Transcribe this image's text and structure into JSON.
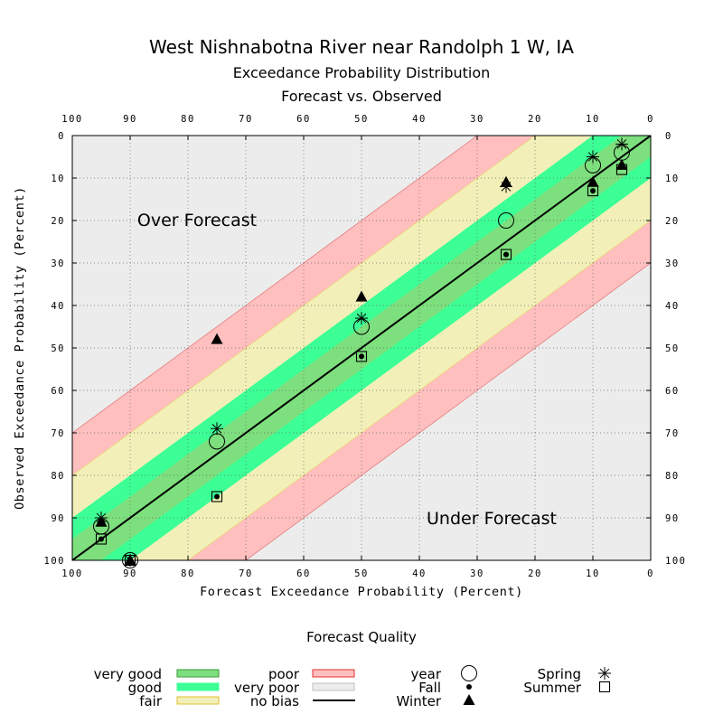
{
  "title": "West Nishnabotna River near Randolph 1 W, IA",
  "subtitle1": "Exceedance Probability Distribution",
  "subtitle2": "Forecast vs. Observed",
  "chart_data": {
    "type": "scatter",
    "xlabel": "Forecast Exceedance Probability (Percent)",
    "ylabel": "Observed Exceedance Probability (Percent)",
    "xlim": [
      100,
      0
    ],
    "ylim": [
      100,
      0
    ],
    "ticks": [
      "0",
      "10",
      "20",
      "30",
      "40",
      "50",
      "60",
      "70",
      "80",
      "90",
      "100"
    ],
    "grid": true,
    "annotations": {
      "over": "Over Forecast",
      "under": "Under Forecast"
    },
    "bands": [
      {
        "name": "very good",
        "offset": 5,
        "color": "#7ddf7d"
      },
      {
        "name": "good",
        "offset": 10,
        "color": "#3cff96"
      },
      {
        "name": "fair",
        "offset": 20,
        "color": "#f2f0b8"
      },
      {
        "name": "poor",
        "offset": 30,
        "color": "#ffbfbf"
      },
      {
        "name": "very poor",
        "offset": 100,
        "color": "#ececec"
      }
    ],
    "series": [
      {
        "name": "year",
        "marker": "circle",
        "points": [
          [
            95,
            92
          ],
          [
            90,
            100
          ],
          [
            75,
            72
          ],
          [
            50,
            45
          ],
          [
            25,
            20
          ],
          [
            10,
            7
          ],
          [
            5,
            4
          ]
        ]
      },
      {
        "name": "Fall",
        "marker": "dot",
        "points": [
          [
            95,
            95
          ],
          [
            90,
            100
          ],
          [
            75,
            85
          ],
          [
            50,
            52
          ],
          [
            25,
            28
          ],
          [
            10,
            13
          ],
          [
            5,
            7
          ]
        ]
      },
      {
        "name": "Winter",
        "marker": "triangle",
        "points": [
          [
            95,
            91
          ],
          [
            90,
            100
          ],
          [
            75,
            48
          ],
          [
            50,
            38
          ],
          [
            25,
            11
          ],
          [
            10,
            11
          ],
          [
            5,
            7
          ]
        ]
      },
      {
        "name": "Spring",
        "marker": "star",
        "points": [
          [
            95,
            90
          ],
          [
            90,
            100
          ],
          [
            75,
            69
          ],
          [
            50,
            43
          ],
          [
            25,
            12
          ],
          [
            10,
            5
          ],
          [
            5,
            2
          ]
        ]
      },
      {
        "name": "Summer",
        "marker": "square",
        "points": [
          [
            95,
            95
          ],
          [
            90,
            100
          ],
          [
            75,
            85
          ],
          [
            50,
            52
          ],
          [
            25,
            28
          ],
          [
            10,
            13
          ],
          [
            5,
            8
          ]
        ]
      }
    ]
  },
  "legend": {
    "title": "Forecast Quality",
    "quality": [
      {
        "label": "very good",
        "color": "#7ddf7d",
        "border": "#3a9a3a"
      },
      {
        "label": "good",
        "color": "#3cff96",
        "border": "#3cff96"
      },
      {
        "label": "fair",
        "color": "#f2f0b8",
        "border": "#e0c030"
      },
      {
        "label": "poor",
        "color": "#ffbfbf",
        "border": "#e03030"
      },
      {
        "label": "very poor",
        "color": "#ececec",
        "border": "#c0c0c0"
      },
      {
        "label": "no bias",
        "color": "#000000",
        "border": "#000000"
      }
    ],
    "markers": [
      {
        "label": "year",
        "marker": "circle"
      },
      {
        "label": "Fall",
        "marker": "dot"
      },
      {
        "label": "Winter",
        "marker": "triangle"
      },
      {
        "label": "Spring",
        "marker": "star"
      },
      {
        "label": "Summer",
        "marker": "square"
      }
    ]
  }
}
